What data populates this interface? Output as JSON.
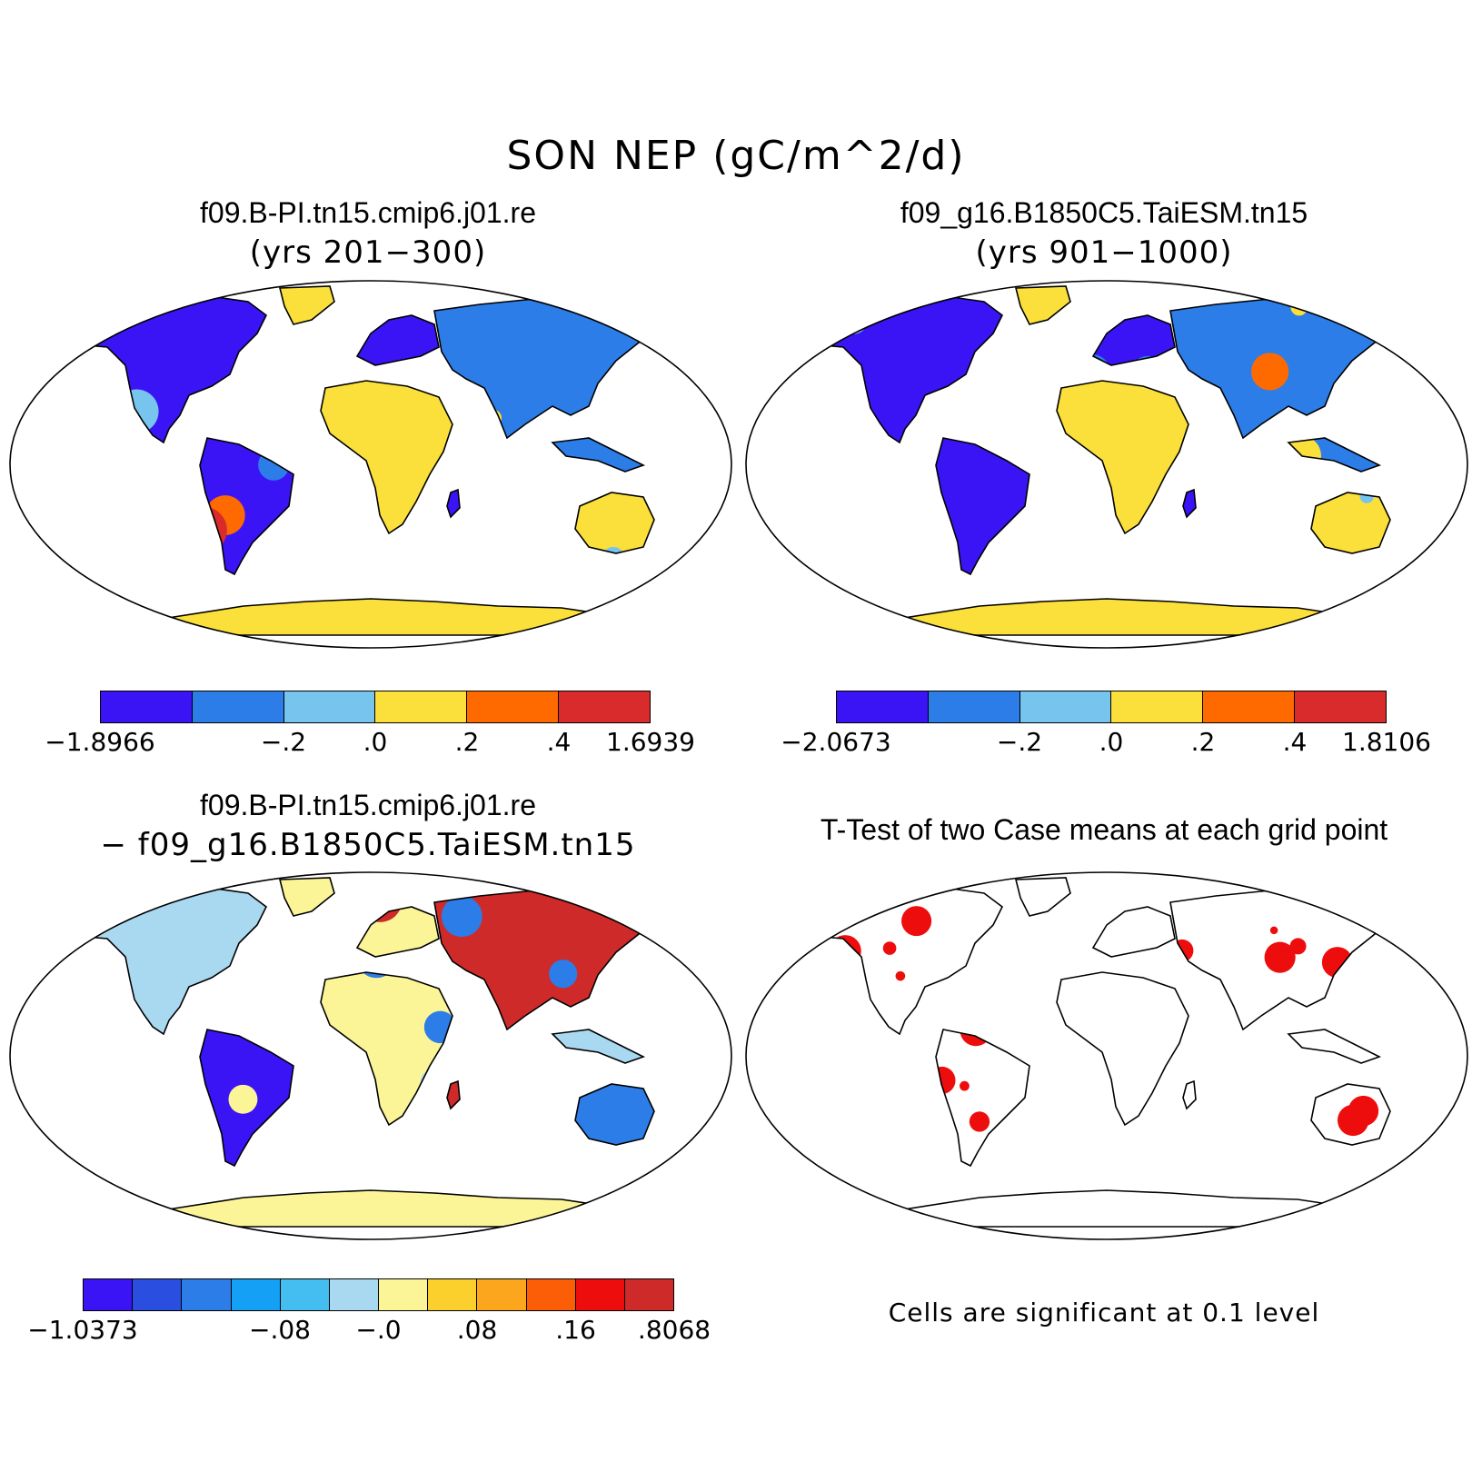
{
  "title": "SON NEP (gC/m^2/d)",
  "panels": [
    {
      "title": "f09.B-PI.tn15.cmip6.j01.re",
      "subtitle": "(yrs 201−300)"
    },
    {
      "title": "f09_g16.B1850C5.TaiESM.tn15",
      "subtitle": "(yrs 901−1000)"
    },
    {
      "title": "f09.B-PI.tn15.cmip6.j01.re",
      "subtitle": "− f09_g16.B1850C5.TaiESM.tn15"
    },
    {
      "title": "T-Test of two Case means at each grid point",
      "subtitle": ""
    }
  ],
  "colorbars": [
    {
      "colors": [
        "#3b14f5",
        "#2c7de8",
        "#77c4ee",
        "#fbdf3b",
        "#ff6a00",
        "#d92b2b"
      ],
      "labels": [
        "−1.8966",
        "−.2",
        ".0",
        ".2",
        ".4",
        "1.6939"
      ]
    },
    {
      "colors": [
        "#3b14f5",
        "#2c7de8",
        "#77c4ee",
        "#fbdf3b",
        "#ff6a00",
        "#d92b2b"
      ],
      "labels": [
        "−2.0673",
        "−.2",
        ".0",
        ".2",
        ".4",
        "1.8106"
      ]
    },
    {
      "colors": [
        "#3b14f5",
        "#2a4fe0",
        "#2c7de8",
        "#14a0f5",
        "#44bdf0",
        "#a9d9f0",
        "#fcf597",
        "#fbcf2c",
        "#fba61c",
        "#fc5e08",
        "#ee0d0d",
        "#cf2a2a"
      ],
      "labels": [
        "−1.0373",
        "−.08",
        "−.0",
        ".08",
        ".16",
        ".8068"
      ]
    }
  ],
  "significance_note": "Cells are significant at 0.1 level",
  "significance_color": "#ee0d0d"
}
